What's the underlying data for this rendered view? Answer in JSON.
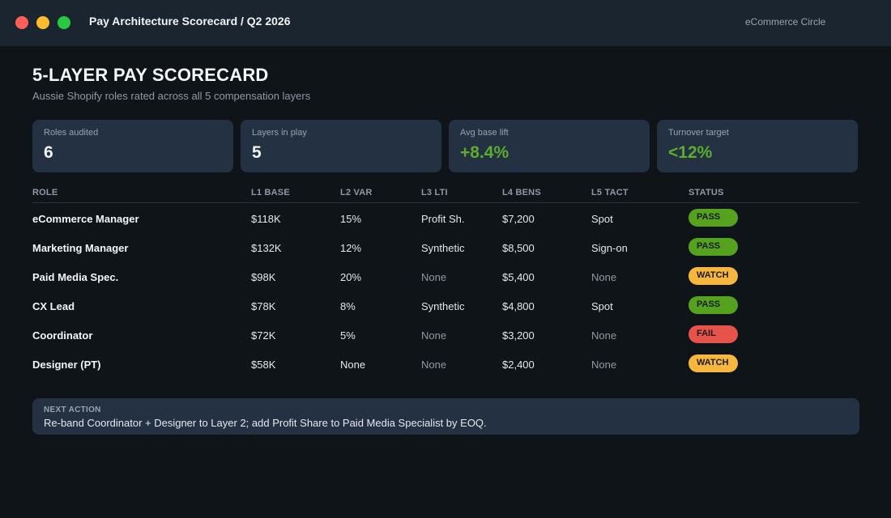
{
  "window": {
    "title": "Pay Architecture Scorecard / Q2 2026",
    "workspace": "eCommerce Circle"
  },
  "page": {
    "title": "5-LAYER PAY SCORECARD",
    "subtitle": "Aussie Shopify roles rated across all 5 compensation layers"
  },
  "stats": [
    {
      "label": "Roles audited",
      "value": "6"
    },
    {
      "label": "Layers in play",
      "value": "5"
    },
    {
      "label": "Avg base lift",
      "value": "+8.4%"
    },
    {
      "label": "Turnover target",
      "value": "<12%"
    }
  ],
  "table": {
    "headers": [
      "ROLE",
      "L1 BASE",
      "L2 VAR",
      "L3 LTI",
      "L4 BENS",
      "L5 TACT",
      "STATUS"
    ],
    "rows": [
      {
        "role": "eCommerce Manager",
        "base": "$118K",
        "var": "15%",
        "lti": "Profit Sh.",
        "bens": "$7,200",
        "tact": "Spot",
        "status": "PASS"
      },
      {
        "role": "Marketing Manager",
        "base": "$132K",
        "var": "12%",
        "lti": "Synthetic",
        "bens": "$8,500",
        "tact": "Sign-on",
        "status": "PASS"
      },
      {
        "role": "Paid Media Spec.",
        "base": "$98K",
        "var": "20%",
        "lti": "None",
        "bens": "$5,400",
        "tact": "None",
        "status": "WATCH"
      },
      {
        "role": "CX Lead",
        "base": "$78K",
        "var": "8%",
        "lti": "Synthetic",
        "bens": "$4,800",
        "tact": "Spot",
        "status": "PASS"
      },
      {
        "role": "Coordinator",
        "base": "$72K",
        "var": "5%",
        "lti": "None",
        "bens": "$3,200",
        "tact": "None",
        "status": "FAIL"
      },
      {
        "role": "Designer (PT)",
        "base": "$58K",
        "var": "None",
        "lti": "None",
        "bens": "$2,400",
        "tact": "None",
        "status": "WATCH"
      }
    ]
  },
  "next_action": {
    "label": "NEXT ACTION",
    "text": "Re-band Coordinator + Designer to Layer 2; add Profit Share to Paid Media Specialist by EOQ."
  },
  "colors": {
    "background": "#0f1419",
    "card": "#243142",
    "accent_green": "#5aae2c",
    "status_pass": "#54a21e",
    "status_watch": "#f7b73f",
    "status_fail": "#e5534b"
  }
}
